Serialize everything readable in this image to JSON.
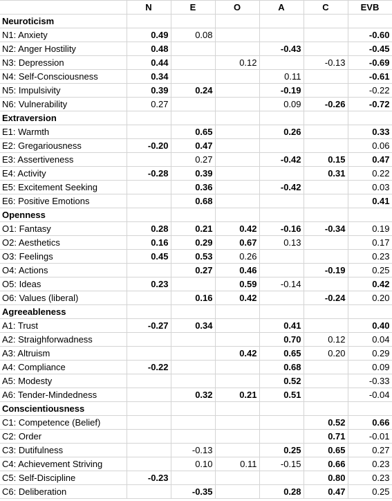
{
  "columns": [
    "",
    "N",
    "E",
    "O",
    "A",
    "C",
    "EVB"
  ],
  "rows": [
    {
      "type": "section",
      "label": "Neuroticism"
    },
    {
      "type": "row",
      "label": "N1: Anxiety",
      "cells": [
        {
          "v": "0.49",
          "b": true
        },
        {
          "v": "0.08",
          "b": false
        },
        null,
        null,
        null,
        {
          "v": "-0.60",
          "b": true
        }
      ]
    },
    {
      "type": "row",
      "label": "N2: Anger Hostility",
      "cells": [
        {
          "v": "0.48",
          "b": true
        },
        null,
        null,
        {
          "v": "-0.43",
          "b": true
        },
        null,
        {
          "v": "-0.45",
          "b": true
        }
      ]
    },
    {
      "type": "row",
      "label": "N3: Depression",
      "cells": [
        {
          "v": "0.44",
          "b": true
        },
        null,
        {
          "v": "0.12",
          "b": false
        },
        null,
        {
          "v": "-0.13",
          "b": false
        },
        {
          "v": "-0.69",
          "b": true
        }
      ]
    },
    {
      "type": "row",
      "label": "N4: Self-Consciousness",
      "cells": [
        {
          "v": "0.34",
          "b": true
        },
        null,
        null,
        {
          "v": "0.11",
          "b": false
        },
        null,
        {
          "v": "-0.61",
          "b": true
        }
      ]
    },
    {
      "type": "row",
      "label": "N5: Impulsivity",
      "cells": [
        {
          "v": "0.39",
          "b": true
        },
        {
          "v": "0.24",
          "b": true
        },
        null,
        {
          "v": "-0.19",
          "b": true
        },
        null,
        {
          "v": "-0.22",
          "b": false
        }
      ]
    },
    {
      "type": "row",
      "label": "N6: Vulnerability",
      "cells": [
        {
          "v": "0.27",
          "b": false
        },
        null,
        null,
        {
          "v": "0.09",
          "b": false
        },
        {
          "v": "-0.26",
          "b": true
        },
        {
          "v": "-0.72",
          "b": true
        }
      ]
    },
    {
      "type": "section",
      "label": "Extraversion"
    },
    {
      "type": "row",
      "label": "E1: Warmth",
      "cells": [
        null,
        {
          "v": "0.65",
          "b": true
        },
        null,
        {
          "v": "0.26",
          "b": true
        },
        null,
        {
          "v": "0.33",
          "b": true
        }
      ]
    },
    {
      "type": "row",
      "label": "E2: Gregariousness",
      "cells": [
        {
          "v": "-0.20",
          "b": true
        },
        {
          "v": "0.47",
          "b": true
        },
        null,
        null,
        null,
        {
          "v": "0.06",
          "b": false
        }
      ]
    },
    {
      "type": "row",
      "label": "E3: Assertiveness",
      "cells": [
        null,
        {
          "v": "0.27",
          "b": false
        },
        null,
        {
          "v": "-0.42",
          "b": true
        },
        {
          "v": "0.15",
          "b": true
        },
        {
          "v": "0.47",
          "b": true
        }
      ]
    },
    {
      "type": "row",
      "label": "E4: Activity",
      "cells": [
        {
          "v": "-0.28",
          "b": true
        },
        {
          "v": "0.39",
          "b": true
        },
        null,
        null,
        {
          "v": "0.31",
          "b": true
        },
        {
          "v": "0.22",
          "b": false
        }
      ]
    },
    {
      "type": "row",
      "label": "E5: Excitement Seeking",
      "cells": [
        null,
        {
          "v": "0.36",
          "b": true
        },
        null,
        {
          "v": "-0.42",
          "b": true
        },
        null,
        {
          "v": "0.03",
          "b": false
        }
      ]
    },
    {
      "type": "row",
      "label": "E6: Positive Emotions",
      "cells": [
        null,
        {
          "v": "0.68",
          "b": true
        },
        null,
        null,
        null,
        {
          "v": "0.41",
          "b": true
        }
      ]
    },
    {
      "type": "section",
      "label": "Openness"
    },
    {
      "type": "row",
      "label": "O1: Fantasy",
      "cells": [
        {
          "v": "0.28",
          "b": true
        },
        {
          "v": "0.21",
          "b": true
        },
        {
          "v": "0.42",
          "b": true
        },
        {
          "v": "-0.16",
          "b": true
        },
        {
          "v": "-0.34",
          "b": true
        },
        {
          "v": "0.19",
          "b": false
        }
      ]
    },
    {
      "type": "row",
      "label": "O2: Aesthetics",
      "cells": [
        {
          "v": "0.16",
          "b": true
        },
        {
          "v": "0.29",
          "b": true
        },
        {
          "v": "0.67",
          "b": true
        },
        {
          "v": "0.13",
          "b": false
        },
        null,
        {
          "v": "0.17",
          "b": false
        }
      ]
    },
    {
      "type": "row",
      "label": "O3: Feelings",
      "cells": [
        {
          "v": "0.45",
          "b": true
        },
        {
          "v": "0.53",
          "b": true
        },
        {
          "v": "0.26",
          "b": false
        },
        null,
        null,
        {
          "v": "0.23",
          "b": false
        }
      ]
    },
    {
      "type": "row",
      "label": "O4: Actions",
      "cells": [
        null,
        {
          "v": "0.27",
          "b": true
        },
        {
          "v": "0.46",
          "b": true
        },
        null,
        {
          "v": "-0.19",
          "b": true
        },
        {
          "v": "0.25",
          "b": false
        }
      ]
    },
    {
      "type": "row",
      "label": "O5: Ideas",
      "cells": [
        {
          "v": "0.23",
          "b": true
        },
        null,
        {
          "v": "0.59",
          "b": true
        },
        {
          "v": "-0.14",
          "b": false
        },
        null,
        {
          "v": "0.42",
          "b": true
        }
      ]
    },
    {
      "type": "row",
      "label": "O6: Values (liberal)",
      "cells": [
        null,
        {
          "v": "0.16",
          "b": true
        },
        {
          "v": "0.42",
          "b": true
        },
        null,
        {
          "v": "-0.24",
          "b": true
        },
        {
          "v": "0.20",
          "b": false
        }
      ]
    },
    {
      "type": "section",
      "label": "Agreeableness"
    },
    {
      "type": "row",
      "label": "A1: Trust",
      "cells": [
        {
          "v": "-0.27",
          "b": true
        },
        {
          "v": "0.34",
          "b": true
        },
        null,
        {
          "v": "0.41",
          "b": true
        },
        null,
        {
          "v": "0.40",
          "b": true
        }
      ]
    },
    {
      "type": "row",
      "label": "A2: Straighforwadness",
      "cells": [
        null,
        null,
        null,
        {
          "v": "0.70",
          "b": true
        },
        {
          "v": "0.12",
          "b": false
        },
        {
          "v": "0.04",
          "b": false
        }
      ]
    },
    {
      "type": "row",
      "label": "A3: Altruism",
      "cells": [
        null,
        null,
        {
          "v": "0.42",
          "b": true
        },
        {
          "v": "0.65",
          "b": true
        },
        {
          "v": "0.20",
          "b": false
        },
        {
          "v": "0.29",
          "b": false
        }
      ]
    },
    {
      "type": "row",
      "label": "A4: Compliance",
      "cells": [
        {
          "v": "-0.22",
          "b": true
        },
        null,
        null,
        {
          "v": "0.68",
          "b": true
        },
        null,
        {
          "v": "0.09",
          "b": false
        }
      ]
    },
    {
      "type": "row",
      "label": "A5: Modesty",
      "cells": [
        null,
        null,
        null,
        {
          "v": "0.52",
          "b": true
        },
        null,
        {
          "v": "-0.33",
          "b": false
        }
      ]
    },
    {
      "type": "row",
      "label": "A6: Tender-Mindedness",
      "cells": [
        null,
        {
          "v": "0.32",
          "b": true
        },
        {
          "v": "0.21",
          "b": true
        },
        {
          "v": "0.51",
          "b": true
        },
        null,
        {
          "v": "-0.04",
          "b": false
        }
      ]
    },
    {
      "type": "section",
      "label": "Conscientiousness"
    },
    {
      "type": "row",
      "label": "C1: Competence (Belief)",
      "cells": [
        null,
        null,
        null,
        null,
        {
          "v": "0.52",
          "b": true
        },
        {
          "v": "0.66",
          "b": true
        }
      ]
    },
    {
      "type": "row",
      "label": "C2: Order",
      "cells": [
        null,
        null,
        null,
        null,
        {
          "v": "0.71",
          "b": true
        },
        {
          "v": "-0.01",
          "b": false
        }
      ]
    },
    {
      "type": "row",
      "label": "C3: Dutifulness",
      "cells": [
        null,
        {
          "v": "-0.13",
          "b": false
        },
        null,
        {
          "v": "0.25",
          "b": true
        },
        {
          "v": "0.65",
          "b": true
        },
        {
          "v": "0.27",
          "b": false
        }
      ]
    },
    {
      "type": "row",
      "label": "C4: Achievement Striving",
      "cells": [
        null,
        {
          "v": "0.10",
          "b": false
        },
        {
          "v": "0.11",
          "b": false
        },
        {
          "v": "-0.15",
          "b": false
        },
        {
          "v": "0.66",
          "b": true
        },
        {
          "v": "0.23",
          "b": false
        }
      ]
    },
    {
      "type": "row",
      "label": "C5: Self-Discipline",
      "cells": [
        {
          "v": "-0.23",
          "b": true
        },
        null,
        null,
        null,
        {
          "v": "0.80",
          "b": true
        },
        {
          "v": "0.23",
          "b": false
        }
      ]
    },
    {
      "type": "row",
      "label": "C6: Deliberation",
      "cells": [
        null,
        {
          "v": "-0.35",
          "b": true
        },
        null,
        {
          "v": "0.28",
          "b": true
        },
        {
          "v": "0.47",
          "b": true
        },
        {
          "v": "0.25",
          "b": false
        }
      ]
    }
  ]
}
